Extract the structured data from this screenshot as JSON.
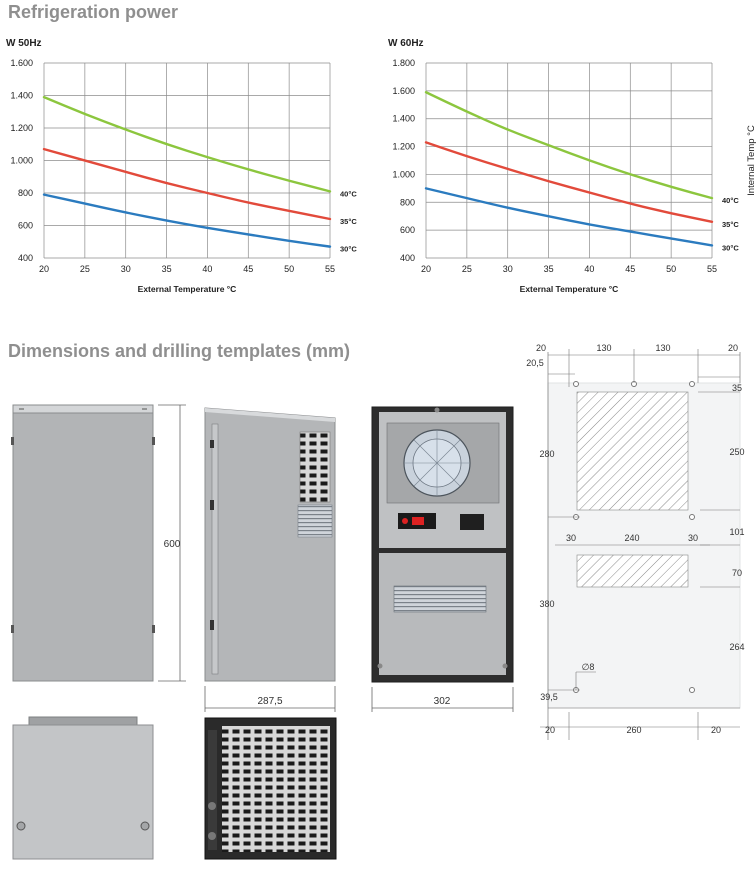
{
  "headings": {
    "refrigeration": "Refrigeration power",
    "dimensions": "Dimensions and drilling templates (mm)"
  },
  "chart_data": [
    {
      "type": "line",
      "title": "W  50Hz",
      "xlabel": "External Temperature °C",
      "ylabel": "",
      "x": [
        20,
        25,
        30,
        35,
        40,
        45,
        50,
        55
      ],
      "x_ticks": [
        "20",
        "25",
        "30",
        "35",
        "40",
        "45",
        "50",
        "55"
      ],
      "y_ticks": [
        "400",
        "600",
        "800",
        "1.000",
        "1.200",
        "1.400",
        "1.600"
      ],
      "y_tick_values": [
        400,
        600,
        800,
        1000,
        1200,
        1400,
        1600
      ],
      "xlim": [
        20,
        55
      ],
      "ylim": [
        400,
        1600
      ],
      "grid": true,
      "series": [
        {
          "name": "40°C",
          "color": "#8cc63e",
          "values": [
            1390,
            1285,
            1190,
            1100,
            1020,
            945,
            875,
            810
          ]
        },
        {
          "name": "35°C",
          "color": "#e24a3b",
          "values": [
            1070,
            1000,
            930,
            860,
            800,
            740,
            690,
            640
          ]
        },
        {
          "name": "30°C",
          "color": "#2b7bbf",
          "values": [
            790,
            735,
            680,
            630,
            585,
            545,
            505,
            470
          ]
        }
      ]
    },
    {
      "type": "line",
      "title": "W  60Hz",
      "xlabel": "External Temperature °C",
      "ylabel": "Internal Temp °C",
      "x": [
        20,
        25,
        30,
        35,
        40,
        45,
        50,
        55
      ],
      "x_ticks": [
        "20",
        "25",
        "30",
        "35",
        "40",
        "45",
        "50",
        "55"
      ],
      "y_ticks": [
        "400",
        "600",
        "800",
        "1.000",
        "1.200",
        "1.400",
        "1.600",
        "1.800"
      ],
      "y_tick_values": [
        400,
        600,
        800,
        1000,
        1200,
        1400,
        1600,
        1800
      ],
      "xlim": [
        20,
        55
      ],
      "ylim": [
        400,
        1800
      ],
      "grid": true,
      "series": [
        {
          "name": "40°C",
          "color": "#8cc63e",
          "values": [
            1590,
            1450,
            1320,
            1210,
            1100,
            1000,
            910,
            830
          ]
        },
        {
          "name": "35°C",
          "color": "#e24a3b",
          "values": [
            1230,
            1130,
            1040,
            950,
            870,
            790,
            720,
            660
          ]
        },
        {
          "name": "30°C",
          "color": "#2b7bbf",
          "values": [
            900,
            830,
            760,
            700,
            640,
            590,
            540,
            490
          ]
        }
      ]
    }
  ],
  "dimensions": {
    "height": "600",
    "depth": "287,5",
    "width": "302"
  },
  "drilling_template": {
    "top_row": [
      "20",
      "130",
      "130",
      "20"
    ],
    "offset_left": "20,5",
    "top_margin": "35",
    "upper_height": "280",
    "upper_cutout_height": "250",
    "gap": "101",
    "lower_cutout_row": [
      "30",
      "240",
      "30"
    ],
    "lower_cutout_height": "70",
    "lower_height": "380",
    "lower_right": "264",
    "hole_diameter": "∅8",
    "bottom_offset": "39,5",
    "bottom_row": [
      "20",
      "260",
      "20"
    ]
  }
}
